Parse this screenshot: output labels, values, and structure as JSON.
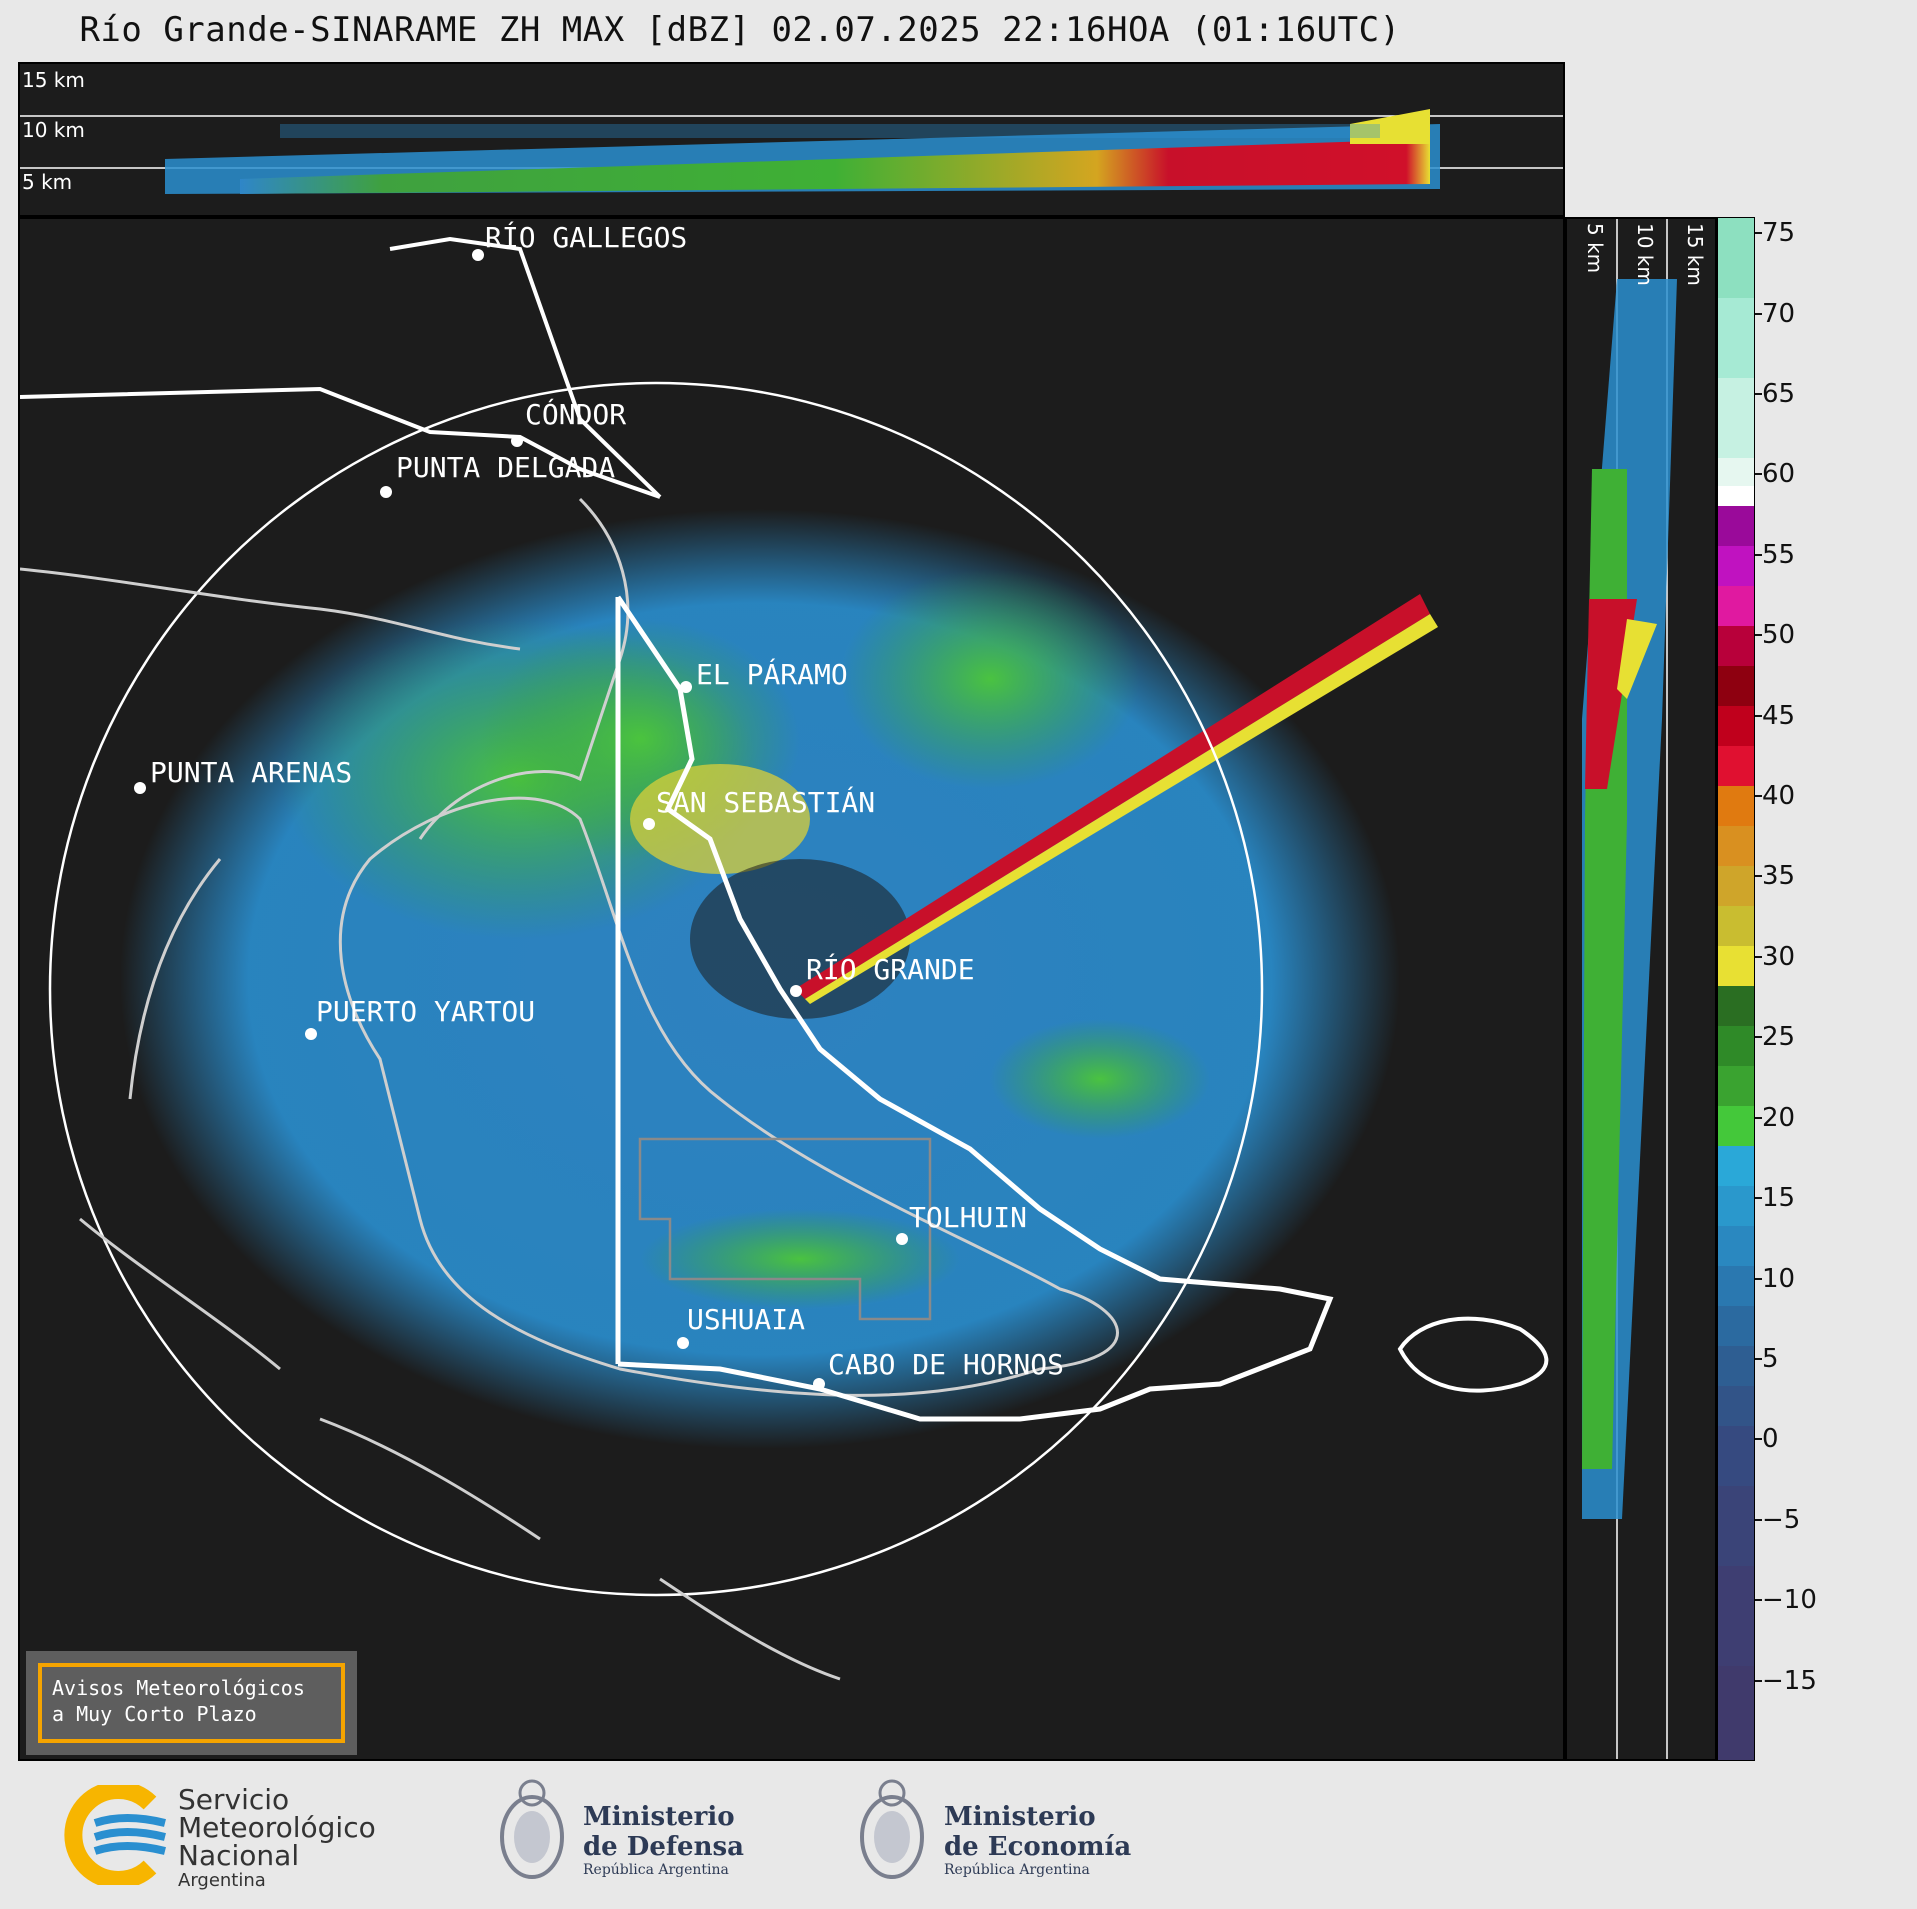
{
  "title": "Río Grande-SINARAME ZH MAX [dBZ] 02.07.2025 22:16HOA (01:16UTC)",
  "top_panel": {
    "altitude_labels": [
      "15 km",
      "10 km",
      "5 km"
    ]
  },
  "right_panel": {
    "altitude_labels": [
      "5 km",
      "10 km",
      "15 km"
    ]
  },
  "map": {
    "cities": [
      {
        "name": "RÍO GALLEGOS"
      },
      {
        "name": "CÓNDOR"
      },
      {
        "name": "PUNTA DELGADA"
      },
      {
        "name": "EL PÁRAMO"
      },
      {
        "name": "PUNTA ARENAS"
      },
      {
        "name": "SAN SEBASTIÁN"
      },
      {
        "name": "RÍO GRANDE"
      },
      {
        "name": "PUERTO YARTOU"
      },
      {
        "name": "TOLHUIN"
      },
      {
        "name": "USHUAIA"
      },
      {
        "name": "CABO DE HORNOS"
      }
    ]
  },
  "colorbar": {
    "unit": "dBZ",
    "min": -20,
    "max": 76,
    "ticks": [
      75,
      70,
      65,
      60,
      55,
      50,
      45,
      40,
      35,
      30,
      25,
      20,
      15,
      10,
      5,
      0,
      -5,
      -10,
      -15
    ],
    "tick_labels": [
      "75",
      "70",
      "65",
      "60",
      "55",
      "50",
      "45",
      "40",
      "35",
      "30",
      "25",
      "20",
      "15",
      "10",
      "5",
      "0",
      "−5",
      "−10",
      "−15"
    ]
  },
  "notice": {
    "line1": "Avisos Meteorológicos",
    "line2": "a Muy Corto Plazo"
  },
  "footer": {
    "smn": {
      "line1": "Servicio",
      "line2": "Meteorológico",
      "line3": "Nacional",
      "line4": "Argentina"
    },
    "defensa": {
      "line1": "Ministerio",
      "line2": "de Defensa",
      "line3": "República Argentina"
    },
    "economia": {
      "line1": "Ministerio",
      "line2": "de Economía",
      "line3": "República Argentina"
    }
  },
  "colors": {
    "panel_bg": "#1c1c1c",
    "accent_orange": "#f5a400",
    "smn_blue": "#2a8fd0",
    "smn_yellow": "#f7b500"
  }
}
